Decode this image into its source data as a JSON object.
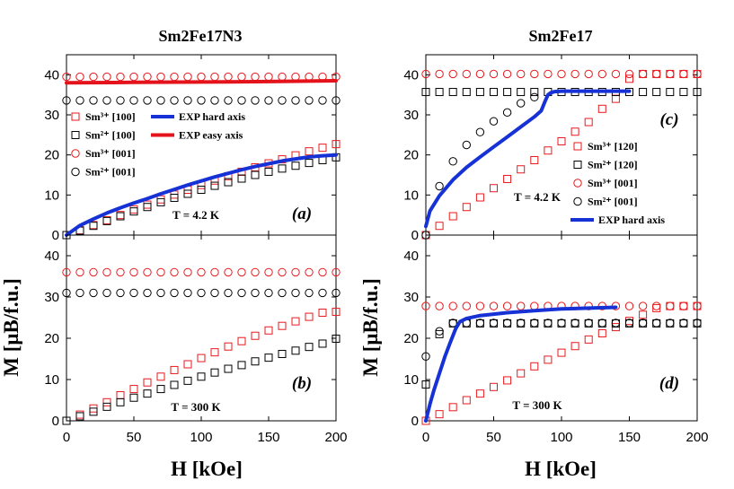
{
  "figure": {
    "xlabel": "H [kOe]",
    "ylabel": "M [μB/f.u.]",
    "colors": {
      "red": "#e8191d",
      "black": "#000000",
      "blue": "#1632d6",
      "redline": "#e4121a"
    }
  },
  "left_title": "Sm2Fe17N3",
  "right_title": "Sm2Fe17",
  "chart_data": [
    {
      "type": "scatter",
      "panel_label": "(a)",
      "annotation": "T = 4.2 K",
      "xlim": [
        0,
        200
      ],
      "ylim": [
        0,
        45
      ],
      "xticks": [
        0,
        50,
        100,
        150,
        200
      ],
      "yticks": [
        0,
        10,
        20,
        30,
        40
      ],
      "legend": {
        "placement": "middle-left",
        "entries": [
          {
            "label": "Sm³⁺ [100]",
            "marker": "square",
            "color": "red"
          },
          {
            "label": "Sm²⁺ [100]",
            "marker": "square",
            "color": "black"
          },
          {
            "label": "Sm³⁺ [001]",
            "marker": "circle",
            "color": "red"
          },
          {
            "label": "Sm²⁺ [001]",
            "marker": "circle",
            "color": "black"
          },
          {
            "label": "EXP hard axis",
            "marker": "line",
            "color": "blue"
          },
          {
            "label": "EXP easy axis",
            "marker": "line",
            "color": "redline"
          }
        ]
      },
      "series": [
        {
          "name": "Sm³⁺ [100]",
          "marker": "square",
          "color": "red",
          "x": [
            0,
            10,
            20,
            30,
            40,
            50,
            60,
            70,
            80,
            90,
            100,
            110,
            120,
            130,
            140,
            150,
            160,
            170,
            180,
            190,
            200
          ],
          "y": [
            0,
            1.2,
            2.5,
            3.7,
            5.0,
            6.4,
            7.6,
            8.9,
            10.1,
            11.3,
            12.5,
            13.6,
            14.7,
            15.8,
            16.9,
            17.9,
            18.9,
            19.9,
            20.9,
            21.8,
            22.7
          ]
        },
        {
          "name": "Sm²⁺ [100]",
          "marker": "square",
          "color": "black",
          "x": [
            0,
            10,
            20,
            30,
            40,
            50,
            60,
            70,
            80,
            90,
            100,
            110,
            120,
            130,
            140,
            150,
            160,
            170,
            180,
            190,
            200
          ],
          "y": [
            0,
            1.1,
            2.3,
            3.5,
            4.7,
            5.9,
            7.0,
            8.2,
            9.3,
            10.3,
            11.3,
            12.3,
            13.2,
            14.1,
            15.0,
            15.8,
            16.6,
            17.3,
            18.0,
            18.7,
            19.4
          ]
        },
        {
          "name": "Sm³⁺ [001]",
          "marker": "circle",
          "color": "red",
          "x": [
            0,
            10,
            20,
            30,
            40,
            50,
            60,
            70,
            80,
            90,
            100,
            110,
            120,
            130,
            140,
            150,
            160,
            170,
            180,
            190,
            200
          ],
          "y": [
            39.5,
            39.5,
            39.5,
            39.5,
            39.5,
            39.5,
            39.5,
            39.5,
            39.5,
            39.5,
            39.5,
            39.5,
            39.5,
            39.5,
            39.5,
            39.5,
            39.5,
            39.5,
            39.5,
            39.5,
            39.5
          ]
        },
        {
          "name": "Sm²⁺ [001]",
          "marker": "circle",
          "color": "black",
          "x": [
            0,
            10,
            20,
            30,
            40,
            50,
            60,
            70,
            80,
            90,
            100,
            110,
            120,
            130,
            140,
            150,
            160,
            170,
            180,
            190,
            200
          ],
          "y": [
            33.6,
            33.6,
            33.6,
            33.6,
            33.6,
            33.6,
            33.6,
            33.6,
            33.6,
            33.6,
            33.6,
            33.6,
            33.6,
            33.6,
            33.6,
            33.6,
            33.6,
            33.6,
            33.6,
            33.6,
            33.6
          ]
        },
        {
          "name": "EXP hard axis",
          "marker": "line",
          "color": "blue",
          "x": [
            0,
            5,
            10,
            20,
            30,
            40,
            50,
            60,
            70,
            80,
            90,
            100,
            110,
            120,
            130,
            140,
            150,
            160,
            170,
            180,
            190,
            200
          ],
          "y": [
            0,
            1.2,
            2.4,
            4.0,
            5.5,
            6.8,
            8.0,
            9.1,
            10.3,
            11.4,
            12.5,
            13.5,
            14.5,
            15.4,
            16.3,
            17.1,
            17.8,
            18.5,
            19.0,
            19.5,
            19.8,
            20.0
          ]
        },
        {
          "name": "EXP easy axis",
          "marker": "line",
          "color": "redline",
          "x": [
            0,
            50,
            100,
            150,
            200
          ],
          "y": [
            38.0,
            38.1,
            38.2,
            38.3,
            38.5
          ]
        }
      ]
    },
    {
      "type": "scatter",
      "panel_label": "(b)",
      "annotation": "T = 300 K",
      "xlim": [
        0,
        200
      ],
      "ylim": [
        0,
        45
      ],
      "xticks": [
        0,
        50,
        100,
        150,
        200
      ],
      "yticks": [
        0,
        10,
        20,
        30,
        40
      ],
      "series": [
        {
          "name": "Sm³⁺ [100]",
          "marker": "square",
          "color": "red",
          "x": [
            0,
            10,
            20,
            30,
            40,
            50,
            60,
            70,
            80,
            90,
            100,
            110,
            120,
            130,
            140,
            150,
            160,
            170,
            180,
            190,
            200
          ],
          "y": [
            0,
            1.5,
            3.0,
            4.5,
            6.2,
            7.7,
            9.3,
            10.7,
            12.3,
            13.7,
            15.2,
            16.6,
            18.0,
            19.3,
            20.6,
            21.9,
            23.0,
            24.1,
            25.2,
            26.2,
            26.4
          ]
        },
        {
          "name": "Sm²⁺ [100]",
          "marker": "square",
          "color": "black",
          "x": [
            0,
            10,
            20,
            30,
            40,
            50,
            60,
            70,
            80,
            90,
            100,
            110,
            120,
            130,
            140,
            150,
            160,
            170,
            180,
            190,
            200
          ],
          "y": [
            0,
            1.1,
            2.2,
            3.4,
            4.5,
            5.6,
            6.6,
            7.7,
            8.7,
            9.7,
            10.7,
            11.7,
            12.6,
            13.5,
            14.4,
            15.3,
            16.2,
            17.0,
            17.9,
            18.7,
            19.9
          ]
        },
        {
          "name": "Sm³⁺ [001]",
          "marker": "circle",
          "color": "red",
          "x": [
            0,
            10,
            20,
            30,
            40,
            50,
            60,
            70,
            80,
            90,
            100,
            110,
            120,
            130,
            140,
            150,
            160,
            170,
            180,
            190,
            200
          ],
          "y": [
            36.0,
            36.0,
            36.0,
            36.0,
            36.0,
            36.0,
            36.0,
            36.0,
            36.0,
            36.0,
            36.0,
            36.0,
            36.0,
            36.0,
            36.0,
            36.0,
            36.0,
            36.0,
            36.0,
            36.0,
            36.0
          ]
        },
        {
          "name": "Sm²⁺ [001]",
          "marker": "circle",
          "color": "black",
          "x": [
            0,
            10,
            20,
            30,
            40,
            50,
            60,
            70,
            80,
            90,
            100,
            110,
            120,
            130,
            140,
            150,
            160,
            170,
            180,
            190,
            200
          ],
          "y": [
            31.0,
            31.0,
            31.0,
            31.0,
            31.0,
            31.0,
            31.0,
            31.0,
            31.0,
            31.0,
            31.0,
            31.0,
            31.0,
            31.0,
            31.0,
            31.0,
            31.0,
            31.0,
            31.0,
            31.0,
            31.0
          ]
        }
      ]
    },
    {
      "type": "scatter",
      "panel_label": "(c)",
      "annotation": "T = 4.2 K",
      "xlim": [
        0,
        200
      ],
      "ylim": [
        0,
        45
      ],
      "xticks": [
        0,
        50,
        100,
        150,
        200
      ],
      "yticks": [
        0,
        10,
        20,
        30,
        40
      ],
      "legend": {
        "placement": "right",
        "entries": [
          {
            "label": "Sm³⁺ [120]",
            "marker": "square",
            "color": "red"
          },
          {
            "label": "Sm²⁺ [120]",
            "marker": "square",
            "color": "black"
          },
          {
            "label": "Sm³⁺ [001]",
            "marker": "circle",
            "color": "red"
          },
          {
            "label": "Sm²⁺ [001]",
            "marker": "circle",
            "color": "black"
          },
          {
            "label": "EXP hard axis",
            "marker": "line",
            "color": "blue"
          }
        ]
      },
      "series": [
        {
          "name": "Sm³⁺ [120]",
          "marker": "square",
          "color": "red",
          "x": [
            0,
            10,
            20,
            30,
            40,
            50,
            60,
            70,
            80,
            90,
            100,
            110,
            120,
            130,
            140,
            150,
            160,
            170,
            180,
            190,
            200
          ],
          "y": [
            0,
            2.3,
            4.7,
            7.0,
            9.4,
            11.7,
            14.0,
            16.4,
            18.7,
            21.1,
            23.4,
            25.8,
            28.2,
            31.5,
            34.0,
            39.0,
            40.2,
            40.2,
            40.2,
            40.2,
            40.2
          ]
        },
        {
          "name": "Sm²⁺ [120]",
          "marker": "square",
          "color": "black",
          "x": [
            0,
            10,
            20,
            30,
            40,
            50,
            60,
            70,
            80,
            90,
            100,
            110,
            120,
            130,
            140,
            150,
            160,
            170,
            180,
            190,
            200
          ],
          "y": [
            35.7,
            35.7,
            35.7,
            35.7,
            35.7,
            35.7,
            35.7,
            35.7,
            35.7,
            35.7,
            35.7,
            35.7,
            35.7,
            35.7,
            35.7,
            35.7,
            35.7,
            35.7,
            35.7,
            35.7,
            35.7
          ]
        },
        {
          "name": "Sm³⁺ [001]",
          "marker": "circle",
          "color": "red",
          "x": [
            0,
            10,
            20,
            30,
            40,
            50,
            60,
            70,
            80,
            90,
            100,
            110,
            120,
            130,
            140,
            150,
            160,
            170,
            180,
            190,
            200
          ],
          "y": [
            40.2,
            40.2,
            40.2,
            40.2,
            40.2,
            40.2,
            40.2,
            40.2,
            40.2,
            40.2,
            40.2,
            40.2,
            40.2,
            40.2,
            40.2,
            40.2,
            40.2,
            40.2,
            40.2,
            40.2,
            40.2
          ]
        },
        {
          "name": "Sm²⁺ [001]",
          "marker": "circle",
          "color": "black",
          "x": [
            0,
            10,
            20,
            30,
            40,
            50,
            60,
            70,
            80
          ],
          "y": [
            0,
            12.2,
            18.4,
            22.5,
            25.7,
            28.4,
            30.6,
            32.9,
            34.4
          ]
        },
        {
          "name": "EXP hard axis",
          "marker": "line",
          "color": "blue",
          "x": [
            0,
            3,
            10,
            20,
            30,
            40,
            50,
            60,
            70,
            80,
            85,
            88,
            90,
            92,
            95,
            100,
            130,
            150
          ],
          "y": [
            2.2,
            6.0,
            9.8,
            13.8,
            16.9,
            19.5,
            22.0,
            24.5,
            27.0,
            29.5,
            31.0,
            33.5,
            35.0,
            35.5,
            35.8,
            35.9,
            35.9,
            35.9
          ]
        }
      ]
    },
    {
      "type": "scatter",
      "panel_label": "(d)",
      "annotation": "T = 300 K",
      "xlim": [
        0,
        200
      ],
      "ylim": [
        0,
        45
      ],
      "xticks": [
        0,
        50,
        100,
        150,
        200
      ],
      "yticks": [
        0,
        10,
        20,
        30,
        40
      ],
      "series": [
        {
          "name": "Sm³⁺ [120]",
          "marker": "square",
          "color": "red",
          "x": [
            0,
            10,
            20,
            30,
            40,
            50,
            60,
            70,
            80,
            90,
            100,
            110,
            120,
            130,
            140,
            150,
            160,
            170,
            180,
            190,
            200
          ],
          "y": [
            0,
            1.6,
            3.3,
            5.0,
            6.6,
            8.2,
            9.8,
            11.5,
            13.2,
            14.8,
            16.5,
            18.1,
            19.7,
            21.2,
            22.7,
            24.2,
            25.7,
            27.3,
            27.8,
            27.8,
            27.8
          ]
        },
        {
          "name": "Sm²⁺ [120]",
          "marker": "square",
          "color": "black",
          "x": [
            0,
            10,
            20,
            30,
            40,
            50,
            60,
            70,
            80,
            90,
            100,
            110,
            120,
            130,
            140,
            150,
            160,
            170,
            180,
            190,
            200
          ],
          "y": [
            8.8,
            21.0,
            23.6,
            23.6,
            23.6,
            23.6,
            23.6,
            23.6,
            23.6,
            23.6,
            23.6,
            23.6,
            23.6,
            23.6,
            23.6,
            23.6,
            23.6,
            23.6,
            23.6,
            23.6,
            23.6
          ]
        },
        {
          "name": "Sm³⁺ [001]",
          "marker": "circle",
          "color": "red",
          "x": [
            0,
            10,
            20,
            30,
            40,
            50,
            60,
            70,
            80,
            90,
            100,
            110,
            120,
            130,
            140,
            150,
            160,
            170,
            180,
            190,
            200
          ],
          "y": [
            27.8,
            27.8,
            27.8,
            27.8,
            27.8,
            27.8,
            27.8,
            27.8,
            27.8,
            27.8,
            27.8,
            27.8,
            27.8,
            27.8,
            27.8,
            27.8,
            27.8,
            27.8,
            27.8,
            27.8,
            27.8
          ]
        },
        {
          "name": "Sm²⁺ [001]",
          "marker": "circle",
          "color": "black",
          "x": [
            0,
            10,
            20,
            30,
            40,
            50,
            60,
            70,
            80,
            90,
            100,
            110,
            120,
            130,
            140,
            150,
            160,
            170,
            180,
            190,
            200
          ],
          "y": [
            15.6,
            21.7,
            23.7,
            23.7,
            23.7,
            23.7,
            23.7,
            23.7,
            23.7,
            23.7,
            23.7,
            23.7,
            23.7,
            23.7,
            23.7,
            23.7,
            23.7,
            23.7,
            23.7,
            23.7,
            23.7
          ]
        },
        {
          "name": "EXP hard axis",
          "marker": "line",
          "color": "blue",
          "x": [
            0,
            3,
            6,
            10,
            14,
            18,
            22,
            25,
            30,
            40,
            60,
            80,
            100,
            120,
            140
          ],
          "y": [
            0,
            4.0,
            7.5,
            11.5,
            15.5,
            19.0,
            22.3,
            24.0,
            24.8,
            25.5,
            26.2,
            26.7,
            27.1,
            27.3,
            27.5
          ]
        }
      ]
    }
  ]
}
